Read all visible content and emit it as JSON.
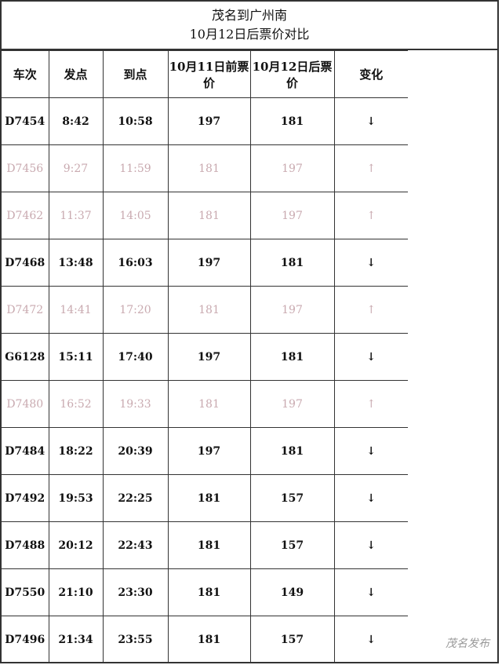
{
  "title": {
    "line1": "茂名到广州南",
    "line2": "10月12日后票价对比"
  },
  "headers": [
    "车次",
    "发点",
    "到点",
    "10月11日前票价",
    "10月12日后票价",
    "变化"
  ],
  "rows": [
    {
      "train": "D7454",
      "depart": "8:42",
      "arrive": "10:58",
      "before": "197",
      "after": "181",
      "change": "↓",
      "dir": "down"
    },
    {
      "train": "D7456",
      "depart": "9:27",
      "arrive": "11:59",
      "before": "181",
      "after": "197",
      "change": "↑",
      "dir": "up"
    },
    {
      "train": "D7462",
      "depart": "11:37",
      "arrive": "14:05",
      "before": "181",
      "after": "197",
      "change": "↑",
      "dir": "up"
    },
    {
      "train": "D7468",
      "depart": "13:48",
      "arrive": "16:03",
      "before": "197",
      "after": "181",
      "change": "↓",
      "dir": "down"
    },
    {
      "train": "D7472",
      "depart": "14:41",
      "arrive": "17:20",
      "before": "181",
      "after": "197",
      "change": "↑",
      "dir": "up"
    },
    {
      "train": "G6128",
      "depart": "15:11",
      "arrive": "17:40",
      "before": "197",
      "after": "181",
      "change": "↓",
      "dir": "down"
    },
    {
      "train": "D7480",
      "depart": "16:52",
      "arrive": "19:33",
      "before": "181",
      "after": "197",
      "change": "↑",
      "dir": "up"
    },
    {
      "train": "D7484",
      "depart": "18:22",
      "arrive": "20:39",
      "before": "197",
      "after": "181",
      "change": "↓",
      "dir": "down"
    },
    {
      "train": "D7492",
      "depart": "19:53",
      "arrive": "22:25",
      "before": "181",
      "after": "157",
      "change": "↓",
      "dir": "down"
    },
    {
      "train": "D7488",
      "depart": "20:12",
      "arrive": "22:43",
      "before": "181",
      "after": "157",
      "change": "↓",
      "dir": "down"
    },
    {
      "train": "D7550",
      "depart": "21:10",
      "arrive": "23:30",
      "before": "181",
      "after": "149",
      "change": "↓",
      "dir": "down"
    },
    {
      "train": "D7496",
      "depart": "21:34",
      "arrive": "23:55",
      "before": "181",
      "after": "157",
      "change": "↓",
      "dir": "down"
    }
  ],
  "watermark": "茂名发布",
  "colors": {
    "up_text": "#c9aab0",
    "down_text": "#111111"
  }
}
